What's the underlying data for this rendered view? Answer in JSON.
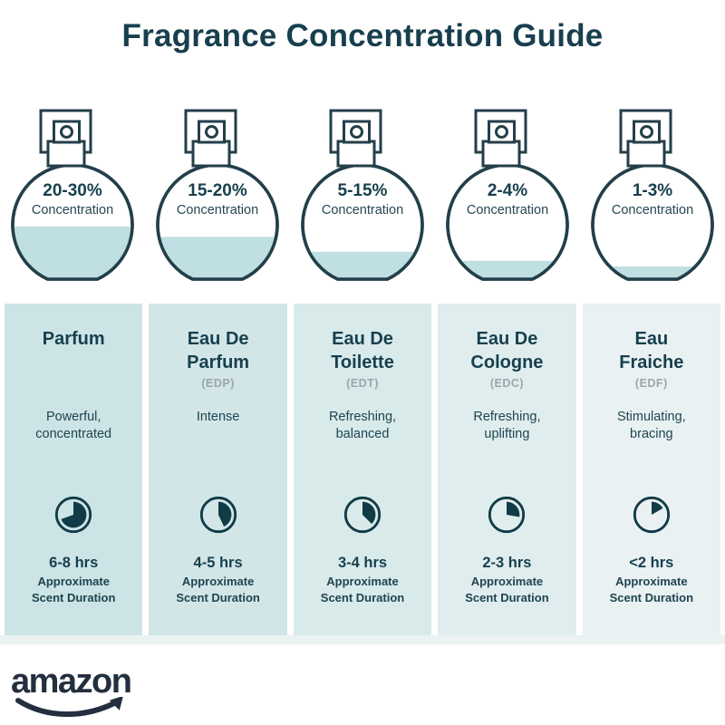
{
  "title": "Fragrance Concentration Guide",
  "colors": {
    "dark_teal_text": "#173f4e",
    "liquid_fill": "#bfdfe2",
    "bottle_outline": "#233f4a",
    "abbr_gray": "#9aa7aa",
    "logo_ink": "#232f3e",
    "floor_strip": "#eaf2f2"
  },
  "bottles": [
    {
      "pct": "20-30%",
      "label": "Concentration",
      "fill_percent": 46
    },
    {
      "pct": "15-20%",
      "label": "Concentration",
      "fill_percent": 37
    },
    {
      "pct": "5-15%",
      "label": "Concentration",
      "fill_percent": 24
    },
    {
      "pct": "2-4%",
      "label": "Concentration",
      "fill_percent": 16
    },
    {
      "pct": "1-3%",
      "label": "Concentration",
      "fill_percent": 11
    }
  ],
  "cards": [
    {
      "name": "Parfum",
      "abbr": "",
      "desc": "Powerful, concentrated",
      "duration": "6-8 hrs",
      "note_line1": "Approximate",
      "note_line2": "Scent Duration",
      "clock_degrees": 250,
      "bg": "#cde4e6"
    },
    {
      "name": "Eau De Parfum",
      "abbr": "(EDP)",
      "desc": "Intense",
      "duration": "4-5 hrs",
      "note_line1": "Approximate",
      "note_line2": "Scent Duration",
      "clock_degrees": 155,
      "bg": "#d2e6e8"
    },
    {
      "name": "Eau De Toilette",
      "abbr": "(EDT)",
      "desc": "Refreshing, balanced",
      "duration": "3-4 hrs",
      "note_line1": "Approximate",
      "note_line2": "Scent Duration",
      "clock_degrees": 135,
      "bg": "#d9eaeb"
    },
    {
      "name": "Eau De Cologne",
      "abbr": "(EDC)",
      "desc": "Refreshing, uplifting",
      "duration": "2-3 hrs",
      "note_line1": "Approximate",
      "note_line2": "Scent Duration",
      "clock_degrees": 100,
      "bg": "#e0edee"
    },
    {
      "name": "Eau Fraiche",
      "abbr": "(EDF)",
      "desc": "Stimulating, bracing",
      "duration": "<2 hrs",
      "note_line1": "Approximate",
      "note_line2": "Scent Duration",
      "clock_degrees": 60,
      "bg": "#e9f1f2"
    }
  ],
  "footer": {
    "brand": "amazon"
  }
}
